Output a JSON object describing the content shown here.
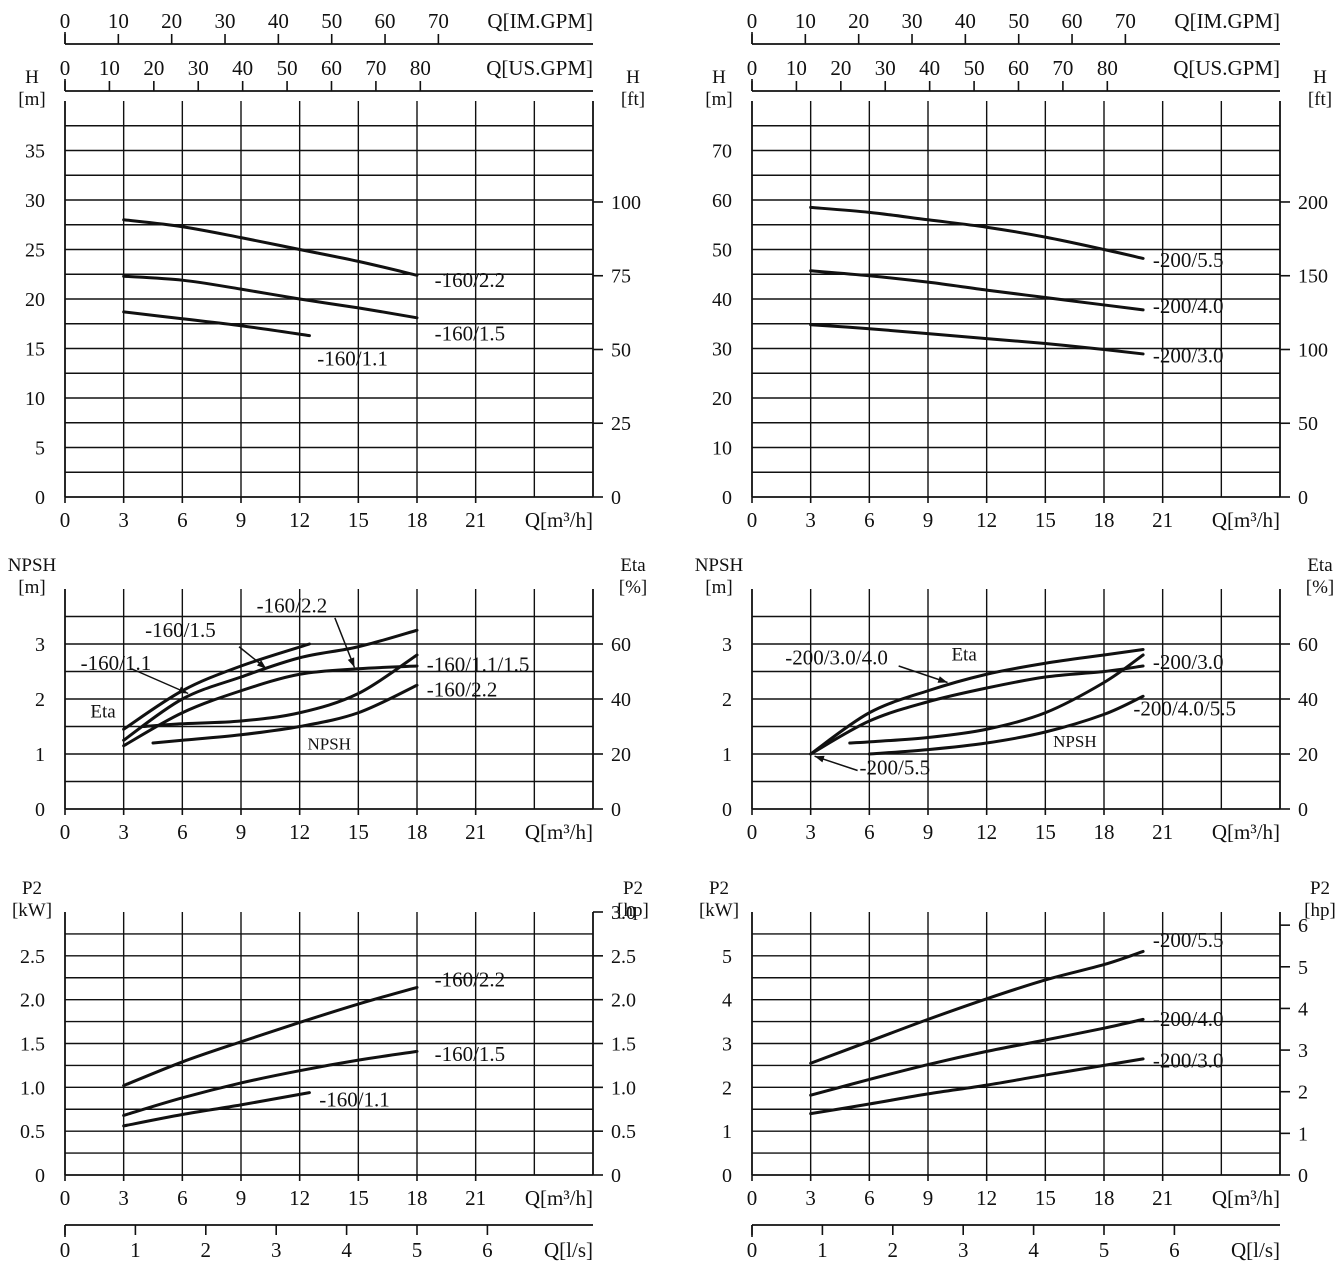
{
  "chart_data": [
    {
      "type": "line",
      "xlabel": "Q[m³/h]",
      "xlim": [
        0,
        27
      ],
      "x_ticks": [
        "0",
        "3",
        "6",
        "9",
        "12",
        "15",
        "18",
        "21"
      ],
      "ylabel": "H\n[m]",
      "ylim": [
        0,
        40
      ],
      "y_ticks": [
        "0",
        "5",
        "10",
        "15",
        "20",
        "25",
        "30",
        "35"
      ],
      "y2label": "H\n[ft]",
      "y2_ticks": [
        "0",
        "25",
        "50",
        "75",
        "100"
      ],
      "top_axis_us": {
        "label": "Q[US.GPM]",
        "ticks": [
          "0",
          "10",
          "20",
          "30",
          "40",
          "50",
          "60",
          "70",
          "80"
        ]
      },
      "top_axis_im": {
        "label": "Q[IM.GPM]",
        "ticks": [
          "0",
          "10",
          "20",
          "30",
          "40",
          "50",
          "60",
          "70"
        ]
      },
      "grid": true,
      "series": [
        {
          "name": "-160/2.2",
          "x": [
            3,
            6,
            9,
            12,
            15,
            18
          ],
          "y": [
            28,
            27.3,
            26.2,
            25,
            23.8,
            22.4
          ]
        },
        {
          "name": "-160/1.5",
          "x": [
            3,
            6,
            9,
            12,
            15,
            18
          ],
          "y": [
            22.3,
            21.9,
            21,
            20,
            19.1,
            18.1
          ]
        },
        {
          "name": "-160/1.1",
          "x": [
            3,
            6,
            9,
            12.5
          ],
          "y": [
            18.7,
            18,
            17.3,
            16.3
          ]
        }
      ]
    },
    {
      "type": "line",
      "xlabel": "Q[m³/h]",
      "xlim": [
        0,
        27
      ],
      "x_ticks": [
        "0",
        "3",
        "6",
        "9",
        "12",
        "15",
        "18",
        "21"
      ],
      "ylabel": "H\n[m]",
      "ylim": [
        0,
        80
      ],
      "y_ticks": [
        "0",
        "10",
        "20",
        "30",
        "40",
        "50",
        "60",
        "70"
      ],
      "y2label": "H\n[ft]",
      "y2_ticks": [
        "0",
        "50",
        "100",
        "150",
        "200"
      ],
      "top_axis_us": {
        "label": "Q[US.GPM]",
        "ticks": [
          "0",
          "10",
          "20",
          "30",
          "40",
          "50",
          "60",
          "70",
          "80"
        ]
      },
      "top_axis_im": {
        "label": "Q[IM.GPM]",
        "ticks": [
          "0",
          "10",
          "20",
          "30",
          "40",
          "50",
          "60",
          "70"
        ]
      },
      "grid": true,
      "series": [
        {
          "name": "-200/5.5",
          "x": [
            3,
            6,
            9,
            12,
            15,
            18,
            20
          ],
          "y": [
            58.5,
            57.5,
            56,
            54.5,
            52.5,
            50,
            48.2
          ]
        },
        {
          "name": "-200/4.0",
          "x": [
            3,
            6,
            9,
            12,
            15,
            18,
            20
          ],
          "y": [
            45.7,
            44.7,
            43.4,
            41.8,
            40.3,
            38.8,
            37.8
          ]
        },
        {
          "name": "-200/3.0",
          "x": [
            3,
            6,
            9,
            12,
            15,
            18,
            20
          ],
          "y": [
            34.8,
            34,
            33,
            32,
            31,
            29.8,
            28.9
          ]
        }
      ]
    },
    {
      "type": "line",
      "xlabel": "Q[m³/h]",
      "xlim": [
        0,
        27
      ],
      "x_ticks": [
        "0",
        "3",
        "6",
        "9",
        "12",
        "15",
        "18",
        "21"
      ],
      "ylabel": "NPSH\n[m]",
      "ylim": [
        0,
        4
      ],
      "y_ticks": [
        "0",
        "1",
        "2",
        "3"
      ],
      "y2label": "Eta\n[%]",
      "y2_ticks": [
        "0",
        "20",
        "40",
        "60"
      ],
      "grid": true,
      "labels": {
        "eta": "Eta",
        "npsh": "NPSH"
      },
      "series": [
        {
          "name": "-160/1.1",
          "axis": "eta",
          "x": [
            3,
            6,
            9,
            12.5
          ],
          "y": [
            29,
            43,
            52,
            60
          ]
        },
        {
          "name": "-160/1.5",
          "axis": "eta",
          "x": [
            3,
            6,
            9,
            12,
            15,
            18
          ],
          "y": [
            25,
            40,
            48,
            55,
            59,
            65
          ]
        },
        {
          "name": "-160/2.2",
          "axis": "eta",
          "x": [
            3,
            6,
            9,
            12,
            15,
            18
          ],
          "y": [
            23,
            35,
            43,
            49,
            51,
            52
          ]
        },
        {
          "name": "-160/1.1/1.5",
          "axis": "npsh",
          "x": [
            4,
            6,
            9,
            12,
            15,
            18
          ],
          "y": [
            1.5,
            1.55,
            1.6,
            1.75,
            2.1,
            2.8
          ]
        },
        {
          "name": "-160/2.2",
          "axis": "npsh",
          "x": [
            4.5,
            6,
            9,
            12,
            15,
            18
          ],
          "y": [
            1.2,
            1.25,
            1.35,
            1.5,
            1.75,
            2.25
          ]
        }
      ]
    },
    {
      "type": "line",
      "xlabel": "Q[m³/h]",
      "xlim": [
        0,
        27
      ],
      "x_ticks": [
        "0",
        "3",
        "6",
        "9",
        "12",
        "15",
        "18",
        "21"
      ],
      "ylabel": "NPSH\n[m]",
      "ylim": [
        0,
        4
      ],
      "y_ticks": [
        "0",
        "1",
        "2",
        "3"
      ],
      "y2label": "Eta\n[%]",
      "y2_ticks": [
        "0",
        "20",
        "40",
        "60"
      ],
      "grid": true,
      "labels": {
        "eta": "Eta",
        "npsh": "NPSH"
      },
      "series": [
        {
          "name": "-200/3.0/4.0",
          "axis": "eta",
          "x": [
            3,
            6,
            9,
            12,
            15,
            18,
            20
          ],
          "y": [
            20,
            35,
            43,
            49,
            53,
            56,
            58
          ]
        },
        {
          "name": "-200/5.5",
          "axis": "eta",
          "x": [
            3,
            6,
            9,
            12,
            15,
            18,
            20
          ],
          "y": [
            20,
            32,
            39,
            44,
            48,
            50,
            52
          ]
        },
        {
          "name": "-200/3.0",
          "axis": "npsh",
          "x": [
            5,
            6,
            9,
            12,
            15,
            18,
            20
          ],
          "y": [
            1.2,
            1.22,
            1.3,
            1.45,
            1.75,
            2.3,
            2.8
          ]
        },
        {
          "name": "-200/4.0/5.5",
          "axis": "npsh",
          "x": [
            6,
            9,
            12,
            15,
            18,
            20
          ],
          "y": [
            1.0,
            1.08,
            1.2,
            1.4,
            1.72,
            2.05
          ]
        }
      ]
    },
    {
      "type": "line",
      "xlabel": "Q[m³/h]",
      "xlim": [
        0,
        27
      ],
      "x_ticks": [
        "0",
        "3",
        "6",
        "9",
        "12",
        "15",
        "18",
        "21"
      ],
      "ylabel": "P2\n[kW]",
      "ylim": [
        0,
        3
      ],
      "y_ticks": [
        "0",
        "0.5",
        "1.0",
        "1.5",
        "2.0",
        "2.5"
      ],
      "y2label": "P2\n[hp]",
      "y2_ticks": [
        "0",
        "0.5",
        "1.0",
        "1.5",
        "2.0",
        "2.5",
        "3.0"
      ],
      "bottom_axis_ls": {
        "label": "Q[l/s]",
        "ticks": [
          "0",
          "1",
          "2",
          "3",
          "4",
          "5",
          "6"
        ]
      },
      "grid": true,
      "series": [
        {
          "name": "-160/2.2",
          "x": [
            3,
            6,
            9,
            12,
            15,
            18
          ],
          "y": [
            1.02,
            1.29,
            1.52,
            1.74,
            1.95,
            2.14
          ]
        },
        {
          "name": "-160/1.5",
          "x": [
            3,
            6,
            9,
            12,
            15,
            18
          ],
          "y": [
            0.68,
            0.88,
            1.05,
            1.19,
            1.31,
            1.41
          ]
        },
        {
          "name": "-160/1.1",
          "x": [
            3,
            6,
            9,
            12.5
          ],
          "y": [
            0.56,
            0.69,
            0.8,
            0.94
          ]
        }
      ]
    },
    {
      "type": "line",
      "xlabel": "Q[m³/h]",
      "xlim": [
        0,
        27
      ],
      "x_ticks": [
        "0",
        "3",
        "6",
        "9",
        "12",
        "15",
        "18",
        "21"
      ],
      "ylabel": "P2\n[kW]",
      "ylim": [
        0,
        6
      ],
      "y_ticks": [
        "0",
        "1",
        "2",
        "3",
        "4",
        "5"
      ],
      "y2label": "P2\n[hp]",
      "y2_ticks": [
        "0",
        "1",
        "2",
        "3",
        "4",
        "5",
        "6"
      ],
      "bottom_axis_ls": {
        "label": "Q[l/s]",
        "ticks": [
          "0",
          "1",
          "2",
          "3",
          "4",
          "5",
          "6"
        ]
      },
      "grid": true,
      "series": [
        {
          "name": "-200/5.5",
          "x": [
            3,
            6,
            9,
            12,
            15,
            18,
            20
          ],
          "y": [
            2.55,
            3.05,
            3.55,
            4.02,
            4.45,
            4.8,
            5.1
          ]
        },
        {
          "name": "-200/4.0",
          "x": [
            3,
            6,
            9,
            12,
            15,
            18,
            20
          ],
          "y": [
            1.82,
            2.18,
            2.52,
            2.82,
            3.08,
            3.35,
            3.55
          ]
        },
        {
          "name": "-200/3.0",
          "x": [
            3,
            6,
            9,
            12,
            15,
            18,
            20
          ],
          "y": [
            1.4,
            1.62,
            1.85,
            2.05,
            2.28,
            2.5,
            2.65
          ]
        }
      ]
    }
  ]
}
